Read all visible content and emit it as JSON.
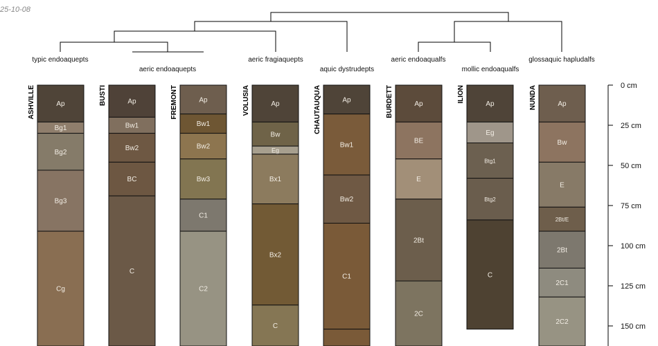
{
  "date_label": "25-10-08",
  "taxa": [
    {
      "name": "typic endoaquepts"
    },
    {
      "name": "aeric endoaquepts"
    },
    {
      "name": "aeric fragiaquepts"
    },
    {
      "name": "aquic dystrudepts"
    },
    {
      "name": "aeric endoaqualfs"
    },
    {
      "name": "mollic endoaqualfs"
    },
    {
      "name": "glossaquic hapludalfs"
    }
  ],
  "depth_axis": {
    "ticks": [
      {
        "value": 0,
        "label": "0 cm"
      },
      {
        "value": 25,
        "label": "25 cm"
      },
      {
        "value": 50,
        "label": "50 cm"
      },
      {
        "value": 75,
        "label": "75 cm"
      },
      {
        "value": 100,
        "label": "100 cm"
      },
      {
        "value": 125,
        "label": "125 cm"
      },
      {
        "value": 150,
        "label": "150 cm"
      }
    ]
  },
  "profiles": [
    {
      "name": "ASHVILLE",
      "horizons": [
        {
          "label": "Ap",
          "top": 0,
          "bottom": 23,
          "color": "#4f4438"
        },
        {
          "label": "Bg1",
          "top": 23,
          "bottom": 30,
          "color": "#8f7e6c"
        },
        {
          "label": "Bg2",
          "top": 30,
          "bottom": 53,
          "color": "#857b69"
        },
        {
          "label": "Bg3",
          "top": 53,
          "bottom": 91,
          "color": "#877463"
        },
        {
          "label": "Cg",
          "top": 91,
          "bottom": 165,
          "color": "#896e52"
        }
      ]
    },
    {
      "name": "BUSTI",
      "horizons": [
        {
          "label": "Ap",
          "top": 0,
          "bottom": 20,
          "color": "#4f4238"
        },
        {
          "label": "Bw1",
          "top": 20,
          "bottom": 30,
          "color": "#806f5e"
        },
        {
          "label": "Bw2",
          "top": 30,
          "bottom": 48,
          "color": "#6e5843"
        },
        {
          "label": "BC",
          "top": 48,
          "bottom": 69,
          "color": "#6d5742"
        },
        {
          "label": "C",
          "top": 69,
          "bottom": 165,
          "color": "#6b5947"
        }
      ]
    },
    {
      "name": "FREMONT",
      "horizons": [
        {
          "label": "Ap",
          "top": 0,
          "bottom": 18,
          "color": "#6e5e4e"
        },
        {
          "label": "Bw1",
          "top": 18,
          "bottom": 30,
          "color": "#6e5633"
        },
        {
          "label": "Bw2",
          "top": 30,
          "bottom": 46,
          "color": "#8d754f"
        },
        {
          "label": "Bw3",
          "top": 46,
          "bottom": 71,
          "color": "#827551"
        },
        {
          "label": "C1",
          "top": 71,
          "bottom": 91,
          "color": "#7d786e"
        },
        {
          "label": "C2",
          "top": 91,
          "bottom": 165,
          "color": "#979383"
        }
      ]
    },
    {
      "name": "VOLUSIA",
      "horizons": [
        {
          "label": "Ap",
          "top": 0,
          "bottom": 23,
          "color": "#4f4438"
        },
        {
          "label": "Bw",
          "top": 23,
          "bottom": 38,
          "color": "#6f6348"
        },
        {
          "label": "Eg",
          "top": 38,
          "bottom": 43,
          "color": "#a79f8e"
        },
        {
          "label": "Bx1",
          "top": 43,
          "bottom": 74,
          "color": "#8c7b5e"
        },
        {
          "label": "Bx2",
          "top": 74,
          "bottom": 137,
          "color": "#725a35"
        },
        {
          "label": "C",
          "top": 137,
          "bottom": 165,
          "color": "#857654"
        }
      ]
    },
    {
      "name": "CHAUTAUQUA",
      "horizons": [
        {
          "label": "Ap",
          "top": 0,
          "bottom": 18,
          "color": "#4f4438"
        },
        {
          "label": "Bw1",
          "top": 18,
          "bottom": 56,
          "color": "#7a5b3a"
        },
        {
          "label": "Bw2",
          "top": 56,
          "bottom": 86,
          "color": "#6f5944"
        },
        {
          "label": "C1",
          "top": 86,
          "bottom": 152,
          "color": "#7a5a38"
        },
        {
          "label": "",
          "top": 152,
          "bottom": 165,
          "color": "#7a5a38"
        }
      ]
    },
    {
      "name": "BURDETT",
      "horizons": [
        {
          "label": "Ap",
          "top": 0,
          "bottom": 23,
          "color": "#5c4b3b"
        },
        {
          "label": "BE",
          "top": 23,
          "bottom": 46,
          "color": "#8d7460"
        },
        {
          "label": "E",
          "top": 46,
          "bottom": 71,
          "color": "#a28f78"
        },
        {
          "label": "2Bt",
          "top": 71,
          "bottom": 122,
          "color": "#6c5e4c"
        },
        {
          "label": "2C",
          "top": 122,
          "bottom": 165,
          "color": "#7d7460"
        }
      ]
    },
    {
      "name": "ILION",
      "horizons": [
        {
          "label": "Ap",
          "top": 0,
          "bottom": 23,
          "color": "#4f4438"
        },
        {
          "label": "Eg",
          "top": 23,
          "bottom": 36,
          "color": "#9f968a"
        },
        {
          "label": "Btg1",
          "top": 36,
          "bottom": 58,
          "color": "#6c6050"
        },
        {
          "label": "Btg2",
          "top": 58,
          "bottom": 84,
          "color": "#6a5d4d"
        },
        {
          "label": "C",
          "top": 84,
          "bottom": 152,
          "color": "#4e4232"
        }
      ]
    },
    {
      "name": "NUNDA",
      "horizons": [
        {
          "label": "Ap",
          "top": 0,
          "bottom": 23,
          "color": "#6e5e4e"
        },
        {
          "label": "Bw",
          "top": 23,
          "bottom": 48,
          "color": "#8d7460"
        },
        {
          "label": "E",
          "top": 48,
          "bottom": 76,
          "color": "#877a67"
        },
        {
          "label": "2Bt/E",
          "top": 76,
          "bottom": 91,
          "color": "#6e5e4b"
        },
        {
          "label": "2Bt",
          "top": 91,
          "bottom": 114,
          "color": "#7d786e"
        },
        {
          "label": "2C1",
          "top": 114,
          "bottom": 132,
          "color": "#8e8b7f"
        },
        {
          "label": "2C2",
          "top": 132,
          "bottom": 165,
          "color": "#979383"
        }
      ]
    }
  ]
}
